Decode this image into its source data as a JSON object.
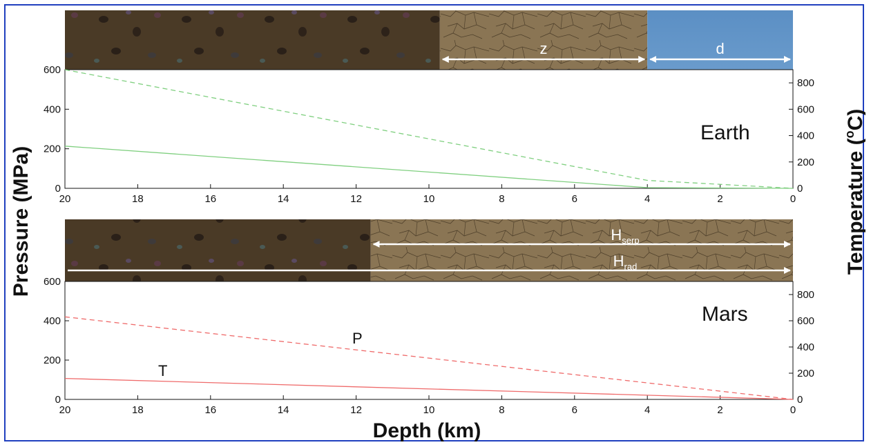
{
  "figure": {
    "ylabel_left": "Pressure (MPa)",
    "ylabel_right_prefix": "Temperature (",
    "ylabel_right_sup": "o",
    "ylabel_right_suffix": "C)",
    "xlabel": "Depth (km)"
  },
  "colors": {
    "frame": "#1f3fbf",
    "earth_curves": "#7fcf7f",
    "mars_curves": "#ef6a6a",
    "regolith": "#4a3a26",
    "serpentinite": "#8a7554",
    "ocean": "#5b8fc4"
  },
  "chart_data": [
    {
      "type": "line",
      "panel": "Earth",
      "label": "Earth",
      "x_axis": {
        "label": "",
        "range": [
          20,
          0
        ],
        "ticks": [
          "20",
          "18",
          "16",
          "14",
          "12",
          "10",
          "8",
          "6",
          "4",
          "2",
          "0"
        ],
        "reversed": true
      },
      "y_left": {
        "label": "Pressure (MPa)",
        "range": [
          0,
          600
        ],
        "ticks": [
          "0",
          "200",
          "400",
          "600"
        ]
      },
      "y_right": {
        "label": "Temperature (oC)",
        "range": [
          0,
          900
        ],
        "ticks": [
          "0",
          "200",
          "400",
          "600",
          "800"
        ]
      },
      "series": [
        {
          "style": "dashed",
          "axis": "left",
          "x": [
            20,
            4,
            0
          ],
          "y": [
            600,
            40,
            0
          ]
        },
        {
          "style": "solid",
          "axis": "right",
          "x": [
            20,
            4,
            0
          ],
          "y": [
            320,
            5,
            0
          ]
        }
      ],
      "band": [
        {
          "kind": "regolith",
          "from": 20,
          "to": 9.7
        },
        {
          "kind": "serpentinite",
          "from": 9.7,
          "to": 4,
          "arrow_label": "z"
        },
        {
          "kind": "ocean",
          "from": 4,
          "to": 0,
          "arrow_label": "d"
        }
      ],
      "grid": false
    },
    {
      "type": "line",
      "panel": "Mars",
      "label": "Mars",
      "x_axis": {
        "label": "Depth (km)",
        "range": [
          20,
          0
        ],
        "ticks": [
          "20",
          "18",
          "16",
          "14",
          "12",
          "10",
          "8",
          "6",
          "4",
          "2",
          "0"
        ],
        "reversed": true
      },
      "y_left": {
        "label": "Pressure (MPa)",
        "range": [
          0,
          600
        ],
        "ticks": [
          "0",
          "200",
          "400",
          "600"
        ]
      },
      "y_right": {
        "label": "Temperature (oC)",
        "range": [
          0,
          900
        ],
        "ticks": [
          "0",
          "200",
          "400",
          "600",
          "800"
        ]
      },
      "series": [
        {
          "style": "dashed",
          "axis": "left",
          "curve_label": "P",
          "x": [
            20,
            0
          ],
          "y": [
            420,
            0
          ]
        },
        {
          "style": "solid",
          "axis": "right",
          "curve_label": "T",
          "x": [
            20,
            0
          ],
          "y": [
            160,
            0
          ]
        }
      ],
      "band": [
        {
          "kind": "regolith",
          "from": 20,
          "to": 11.6
        },
        {
          "kind": "serpentinite",
          "from": 11.6,
          "to": 0
        }
      ],
      "band_arrows": [
        {
          "label": "H",
          "sub": "serp",
          "from": 11.6,
          "to": 0
        },
        {
          "label": "H",
          "sub": "rad",
          "from": 20,
          "to": 0
        }
      ],
      "grid": false
    }
  ]
}
